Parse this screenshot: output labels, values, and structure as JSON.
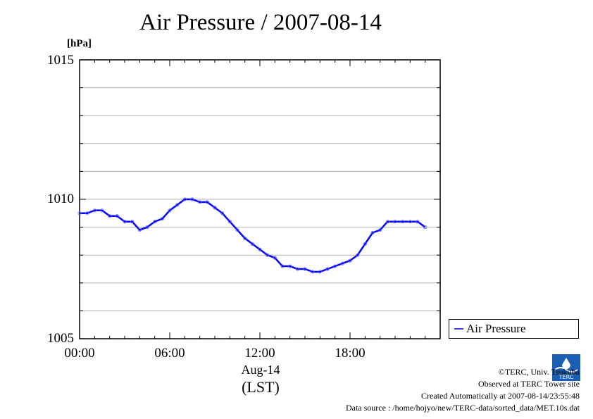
{
  "chart_data": {
    "type": "line",
    "title": "Air Pressure / 2007-08-14",
    "ylabel": "[hPa]",
    "ylim": [
      1005,
      1015
    ],
    "ytick_labels": [
      "1015",
      "1010",
      "1005"
    ],
    "xlim": [
      0,
      23
    ],
    "xtick_labels": [
      "00:00",
      "06:00",
      "12:00",
      "18:00"
    ],
    "xlabel_date": "Aug-14",
    "xlabel_unit": "(LST)",
    "grid": true,
    "legend_position": "bottom-right",
    "series": [
      {
        "name": "Air Pressure",
        "color": "#0000ff",
        "marker_color": "#6666ff",
        "x": [
          0,
          0.5,
          1,
          1.5,
          2,
          2.5,
          3,
          3.5,
          4,
          4.5,
          5,
          5.5,
          6,
          6.5,
          7,
          7.5,
          8,
          8.5,
          9,
          9.5,
          10,
          10.5,
          11,
          11.5,
          12,
          12.5,
          13,
          13.5,
          14,
          14.5,
          15,
          15.5,
          16,
          16.5,
          17,
          17.5,
          18,
          18.5,
          19,
          19.5,
          20,
          20.5,
          21,
          21.5,
          22,
          22.5,
          23
        ],
        "y": [
          1009.5,
          1009.5,
          1009.6,
          1009.6,
          1009.4,
          1009.4,
          1009.2,
          1009.2,
          1008.9,
          1009.0,
          1009.2,
          1009.3,
          1009.6,
          1009.8,
          1010.0,
          1010.0,
          1009.9,
          1009.9,
          1009.7,
          1009.5,
          1009.2,
          1008.9,
          1008.6,
          1008.4,
          1008.2,
          1008.0,
          1007.9,
          1007.6,
          1007.6,
          1007.5,
          1007.5,
          1007.4,
          1007.4,
          1007.5,
          1007.6,
          1007.7,
          1007.8,
          1008.0,
          1008.4,
          1008.8,
          1008.9,
          1009.2,
          1009.2,
          1009.2,
          1009.2,
          1009.2,
          1009.0
        ]
      }
    ]
  },
  "footer": {
    "copyright": "©TERC, Univ. Tsukuba",
    "observed": "Observed at TERC Tower site",
    "created": "Created Automatically at 2007-08-14/23:55:48",
    "source": "Data source : /home/hojyo/new/TERC-data/sorted_data/MET.10s.dat",
    "logo_text": "TERC",
    "logo_color": "#1a5fb4"
  }
}
